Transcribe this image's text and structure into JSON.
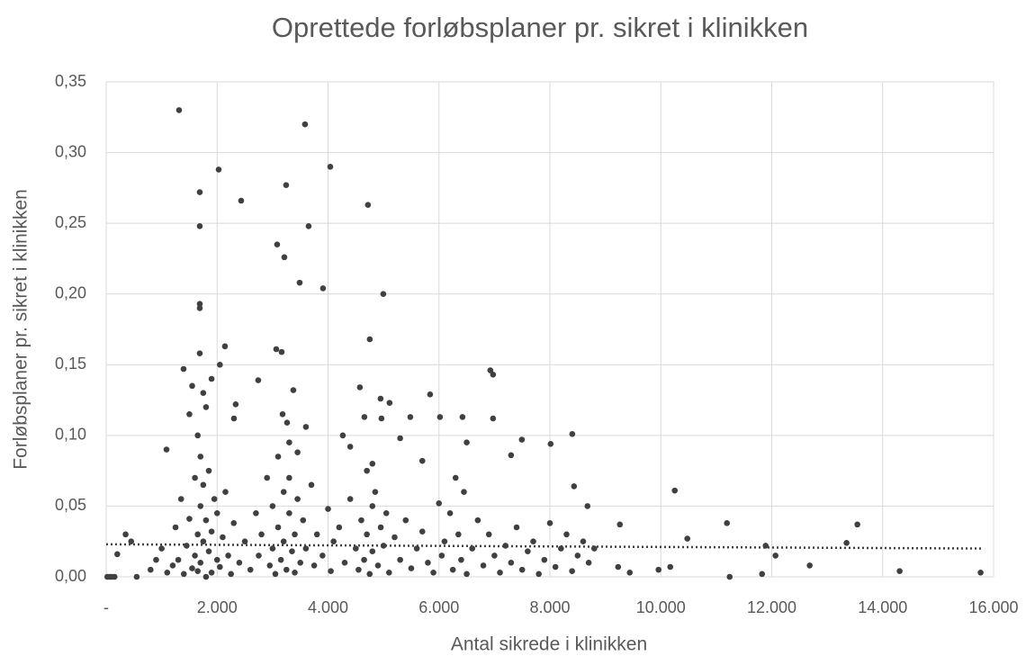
{
  "chart_data": {
    "type": "scatter",
    "title": "Oprettede forløbsplaner pr. sikret i klinikken",
    "x_label": "Antal sikrede i klinikken",
    "y_label": "Forløbsplaner pr. sikret i klinikken",
    "color": "#404040",
    "grid": true,
    "xlim": [
      0,
      16000
    ],
    "ylim": [
      0,
      0.35
    ],
    "xticks": [
      {
        "value": 0,
        "label": "-"
      },
      {
        "value": 2000,
        "label": "2.000"
      },
      {
        "value": 4000,
        "label": "4.000"
      },
      {
        "value": 6000,
        "label": "6.000"
      },
      {
        "value": 8000,
        "label": "8.000"
      },
      {
        "value": 10000,
        "label": "10.000"
      },
      {
        "value": 12000,
        "label": "12.000"
      },
      {
        "value": 14000,
        "label": "14.000"
      },
      {
        "value": 16000,
        "label": "16.000"
      }
    ],
    "yticks": [
      {
        "value": 0,
        "label": "0,00"
      },
      {
        "value": 0.05,
        "label": "0,05"
      },
      {
        "value": 0.1,
        "label": "0,10"
      },
      {
        "value": 0.15,
        "label": "0,15"
      },
      {
        "value": 0.2,
        "label": "0,20"
      },
      {
        "value": 0.25,
        "label": "0,25"
      },
      {
        "value": 0.3,
        "label": "0,30"
      },
      {
        "value": 0.35,
        "label": "0,35"
      }
    ],
    "trendline": {
      "x": [
        0,
        15800
      ],
      "values": [
        0.023,
        0.02
      ]
    },
    "x": [
      1314,
      3585,
      2028,
      4040,
      1687,
      3244,
      2433,
      4720,
      1687,
      3650,
      3082,
      3212,
      3488,
      3909,
      4996,
      1687,
      1687,
      2141,
      4752,
      3066,
      3163,
      1687,
      6926,
      6975,
      1395,
      2741,
      4574,
      5840,
      2335,
      4947,
      5109,
      3374,
      3180,
      5483,
      6018,
      6424,
      6975,
      2303,
      4655,
      4963,
      3601,
      3261,
      7494,
      8013,
      8403,
      7300,
      1087,
      4266,
      10251,
      8435,
      11192,
      13544,
      9262,
      8678,
      10478,
      13349,
      11890,
      12068,
      12684,
      14306,
      15766,
      11825,
      11241,
      10170,
      9959,
      9440,
      9230,
      20,
      60,
      100,
      150,
      200,
      350,
      450,
      550,
      800,
      900,
      1000,
      1100,
      1200,
      1250,
      1300,
      1350,
      1400,
      1450,
      1500,
      1550,
      1600,
      1600,
      1650,
      1650,
      1700,
      1700,
      1700,
      1750,
      1750,
      1800,
      1800,
      1850,
      1850,
      1900,
      1900,
      1950,
      2000,
      2000,
      2050,
      2100,
      2150,
      2200,
      2250,
      2300,
      2400,
      2500,
      2600,
      2700,
      2750,
      2800,
      2900,
      2950,
      3000,
      3000,
      3050,
      3100,
      3100,
      3150,
      3200,
      3200,
      3250,
      3300,
      3300,
      3350,
      3400,
      3400,
      3450,
      3500,
      3550,
      3600,
      3700,
      3750,
      3800,
      3900,
      4000,
      4050,
      4100,
      4200,
      4300,
      4400,
      4500,
      4550,
      4600,
      4650,
      4700,
      4700,
      4750,
      4800,
      4800,
      4850,
      4900,
      4950,
      5000,
      5050,
      5100,
      5200,
      5300,
      5400,
      5500,
      5600,
      5700,
      5800,
      5900,
      6000,
      6050,
      6100,
      6200,
      6250,
      6300,
      6350,
      6400,
      6450,
      6500,
      6600,
      6700,
      6800,
      6900,
      7000,
      7100,
      7200,
      7300,
      7400,
      7500,
      7600,
      7700,
      7800,
      7900,
      8000,
      8100,
      8200,
      8300,
      8400,
      8500,
      8600,
      8700,
      8800,
      1650,
      1750,
      1800,
      1900,
      2050,
      1550,
      1500,
      3300,
      3450,
      4400,
      4800,
      5300,
      5700,
      6500
    ],
    "values": [
      0.33,
      0.32,
      0.288,
      0.29,
      0.272,
      0.277,
      0.266,
      0.263,
      0.248,
      0.248,
      0.235,
      0.226,
      0.208,
      0.204,
      0.2,
      0.193,
      0.19,
      0.163,
      0.168,
      0.161,
      0.159,
      0.158,
      0.146,
      0.143,
      0.147,
      0.139,
      0.134,
      0.129,
      0.122,
      0.126,
      0.123,
      0.132,
      0.115,
      0.113,
      0.113,
      0.113,
      0.112,
      0.112,
      0.113,
      0.112,
      0.106,
      0.109,
      0.097,
      0.094,
      0.101,
      0.086,
      0.09,
      0.1,
      0.061,
      0.064,
      0.038,
      0.037,
      0.037,
      0.05,
      0.027,
      0.024,
      0.022,
      0.015,
      0.008,
      0.004,
      0.003,
      0.002,
      0,
      0.007,
      0.005,
      0.003,
      0.007,
      0,
      0,
      0,
      0,
      0.016,
      0.03,
      0.025,
      0,
      0.005,
      0.012,
      0.02,
      0.003,
      0.008,
      0.035,
      0.012,
      0.055,
      0.002,
      0.022,
      0.041,
      0.006,
      0.07,
      0.015,
      0.03,
      0.004,
      0.085,
      0.05,
      0.01,
      0.025,
      0.065,
      0,
      0.04,
      0.018,
      0.075,
      0.003,
      0.032,
      0.055,
      0.012,
      0.045,
      0.007,
      0.028,
      0.06,
      0.015,
      0.002,
      0.038,
      0.01,
      0.025,
      0.005,
      0.045,
      0.015,
      0.03,
      0.07,
      0.008,
      0.05,
      0.02,
      0.002,
      0.085,
      0.035,
      0.012,
      0.06,
      0.025,
      0.005,
      0.045,
      0.07,
      0.018,
      0.03,
      0.003,
      0.055,
      0.01,
      0.04,
      0.02,
      0.065,
      0.008,
      0.03,
      0.015,
      0.048,
      0.004,
      0.025,
      0.035,
      0.01,
      0.055,
      0.02,
      0.005,
      0.04,
      0.012,
      0.075,
      0.03,
      0.002,
      0.05,
      0.018,
      0.06,
      0.008,
      0.035,
      0.022,
      0.045,
      0.003,
      0.028,
      0.012,
      0.04,
      0.006,
      0.02,
      0.032,
      0.01,
      0.003,
      0.052,
      0.015,
      0.025,
      0.045,
      0.005,
      0.07,
      0.03,
      0.012,
      0.06,
      0.002,
      0.02,
      0.04,
      0.008,
      0.03,
      0.015,
      0.003,
      0.022,
      0.01,
      0.035,
      0.005,
      0.018,
      0.025,
      0.002,
      0.012,
      0.038,
      0.007,
      0.02,
      0.03,
      0.004,
      0.015,
      0.025,
      0.01,
      0.02,
      0.1,
      0.13,
      0.12,
      0.14,
      0.15,
      0.135,
      0.115,
      0.095,
      0.088,
      0.092,
      0.08,
      0.098,
      0.082,
      0.095
    ]
  }
}
